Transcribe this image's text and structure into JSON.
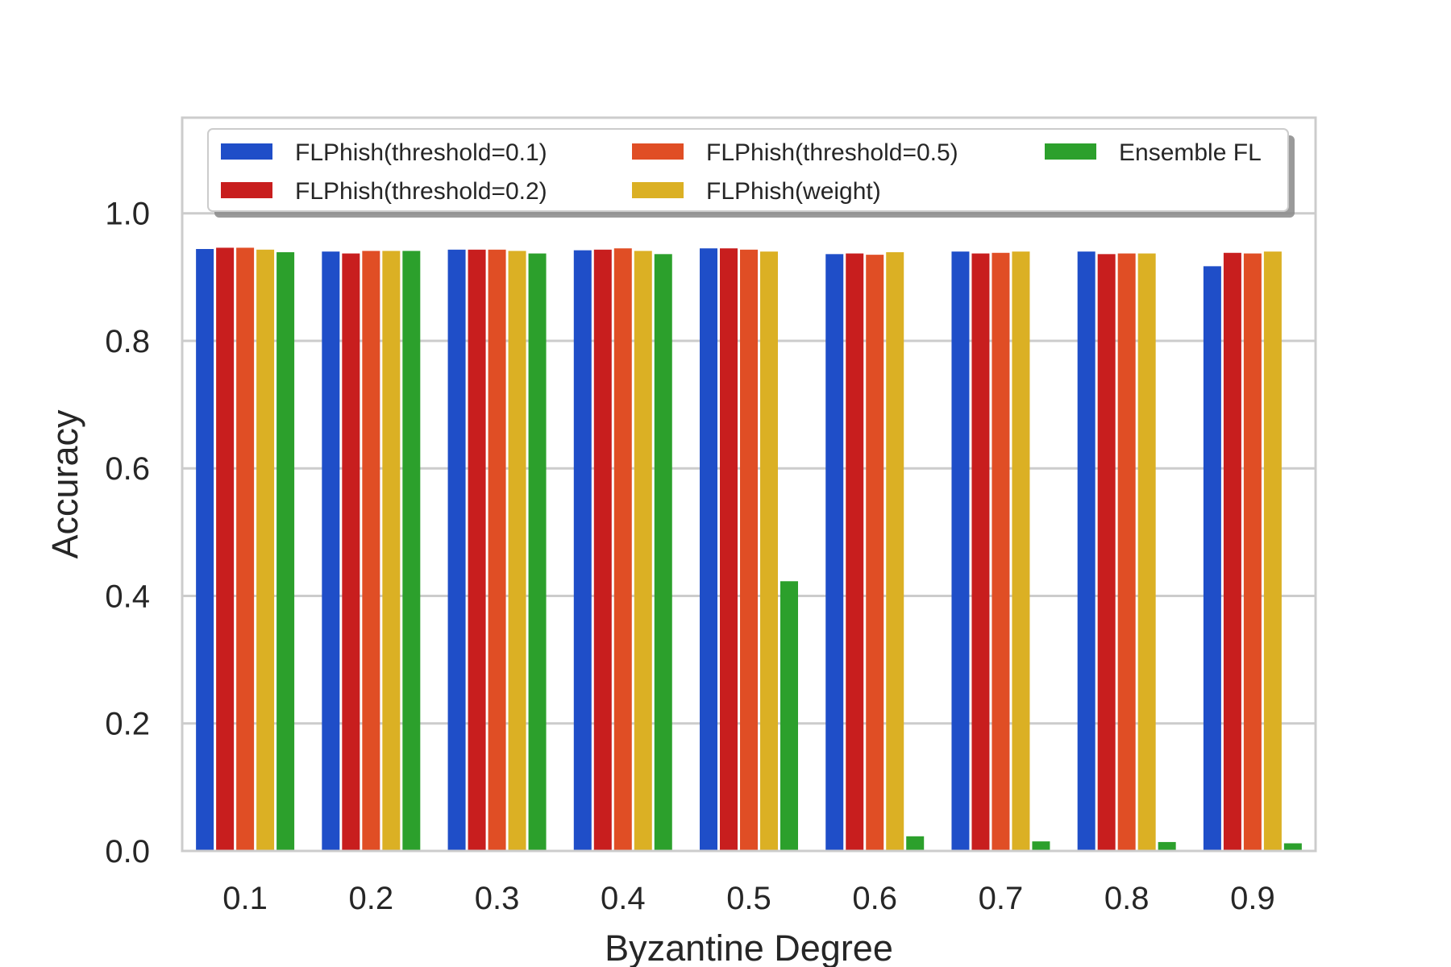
{
  "chart_data": {
    "type": "bar",
    "xlabel": "Byzantine Degree",
    "ylabel": "Accuracy",
    "categories": [
      "0.1",
      "0.2",
      "0.3",
      "0.4",
      "0.5",
      "0.6",
      "0.7",
      "0.8",
      "0.9"
    ],
    "ylim": [
      0,
      1.15
    ],
    "yticks": [
      "0.0",
      "0.2",
      "0.4",
      "0.6",
      "0.8",
      "1.0"
    ],
    "grid": "horizontal",
    "legend_position": "top",
    "series": [
      {
        "name": "FLPhish(threshold=0.1)",
        "color": "#1f4ec8",
        "values": [
          0.944,
          0.94,
          0.943,
          0.942,
          0.945,
          0.936,
          0.94,
          0.94,
          0.917
        ]
      },
      {
        "name": "FLPhish(threshold=0.2)",
        "color": "#c81e1e",
        "values": [
          0.946,
          0.937,
          0.943,
          0.943,
          0.945,
          0.937,
          0.937,
          0.936,
          0.938
        ]
      },
      {
        "name": "FLPhish(threshold=0.5)",
        "color": "#e04e25",
        "values": [
          0.946,
          0.941,
          0.943,
          0.945,
          0.943,
          0.935,
          0.938,
          0.937,
          0.937
        ]
      },
      {
        "name": "FLPhish(weight)",
        "color": "#dbb024",
        "values": [
          0.943,
          0.941,
          0.941,
          0.941,
          0.94,
          0.939,
          0.94,
          0.937,
          0.94
        ]
      },
      {
        "name": "Ensemble FL",
        "color": "#2ca02c",
        "values": [
          0.939,
          0.941,
          0.937,
          0.936,
          0.423,
          0.023,
          0.015,
          0.014,
          0.012
        ]
      }
    ]
  }
}
